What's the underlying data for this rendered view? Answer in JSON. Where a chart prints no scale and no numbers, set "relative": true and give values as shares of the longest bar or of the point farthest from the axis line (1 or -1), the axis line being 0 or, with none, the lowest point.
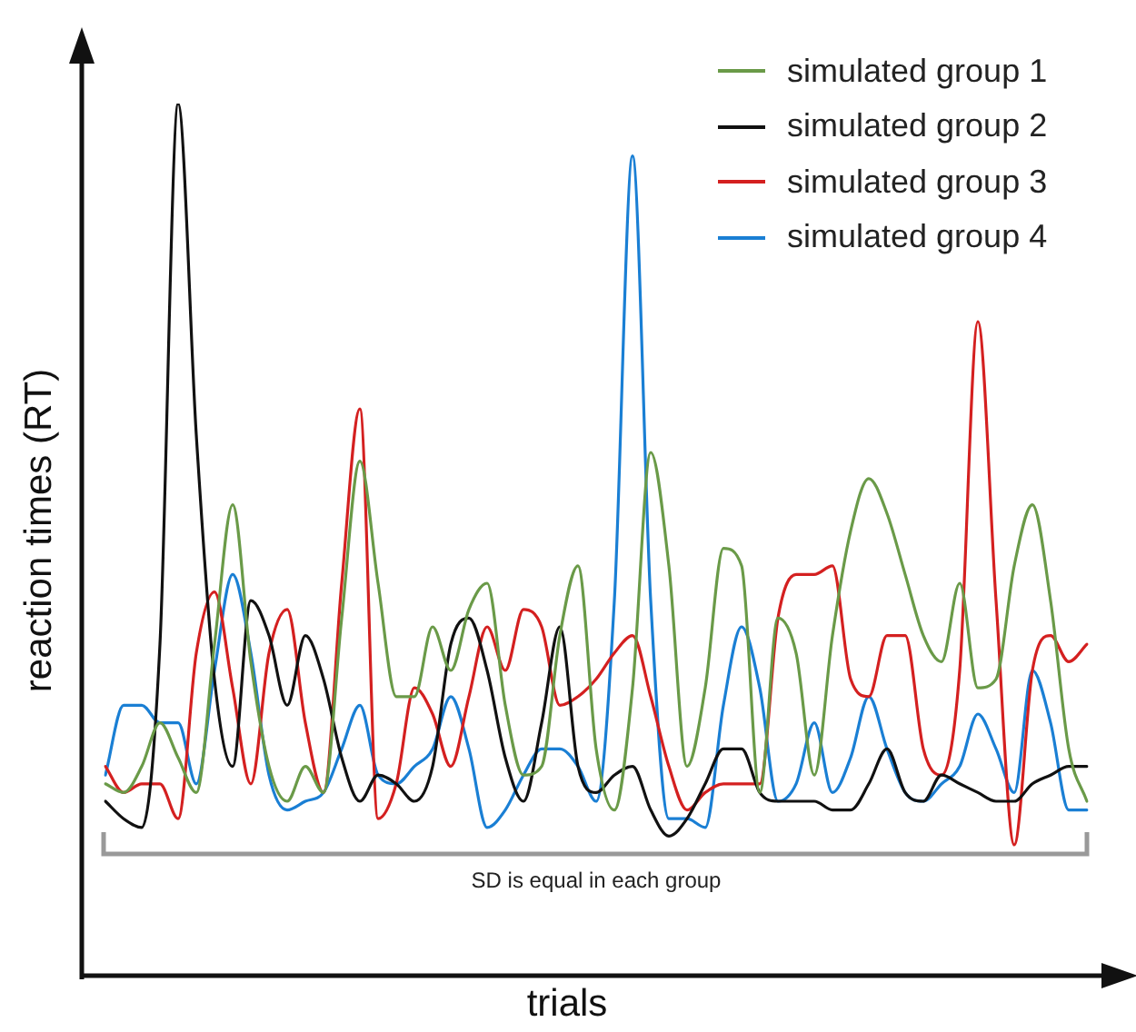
{
  "chart_data": {
    "type": "line",
    "relative": true,
    "xlabel": "trials",
    "ylabel": "reaction times (RT)",
    "legend": "top right",
    "annotations": [
      "SD is equal in each group"
    ],
    "categories": [
      null,
      null,
      null,
      null,
      null,
      null,
      null,
      null,
      null,
      null,
      null,
      null,
      null,
      null,
      null,
      null,
      null,
      null,
      null,
      null,
      null,
      null,
      null,
      null,
      null,
      null,
      null,
      null,
      null,
      null,
      null,
      null,
      null,
      null,
      null,
      null,
      null,
      null,
      null,
      null,
      null,
      null,
      null,
      null,
      null,
      null,
      null,
      null,
      null,
      null,
      null,
      null,
      null,
      null,
      null
    ],
    "series": [
      {
        "name": "simulated group 1",
        "color": "#6a9a48",
        "values": [
          0.22,
          0.21,
          0.24,
          0.29,
          0.25,
          0.21,
          0.38,
          0.54,
          0.36,
          0.24,
          0.2,
          0.24,
          0.21,
          0.41,
          0.59,
          0.45,
          0.32,
          0.32,
          0.4,
          0.35,
          0.42,
          0.45,
          0.31,
          0.23,
          0.24,
          0.39,
          0.47,
          0.26,
          0.19,
          0.33,
          0.6,
          0.47,
          0.24,
          0.33,
          0.49,
          0.47,
          0.21,
          0.41,
          0.37,
          0.23,
          0.39,
          0.51,
          0.57,
          0.53,
          0.46,
          0.39,
          0.36,
          0.45,
          0.33,
          0.34,
          0.47,
          0.54,
          0.43,
          0.26,
          0.2
        ]
      },
      {
        "name": "simulated group 2",
        "color": "#111111",
        "values": [
          0.2,
          0.18,
          0.17,
          0.38,
          1,
          0.62,
          0.34,
          0.24,
          0.43,
          0.39,
          0.31,
          0.39,
          0.34,
          0.25,
          0.2,
          0.23,
          0.22,
          0.2,
          0.24,
          0.38,
          0.41,
          0.35,
          0.25,
          0.2,
          0.29,
          0.4,
          0.24,
          0.21,
          0.23,
          0.24,
          0.19,
          0.16,
          0.18,
          0.22,
          0.26,
          0.26,
          0.21,
          0.2,
          0.2,
          0.2,
          0.19,
          0.19,
          0.22,
          0.26,
          0.21,
          0.2,
          0.23,
          0.22,
          0.21,
          0.2,
          0.2,
          0.22,
          0.23,
          0.24,
          0.24
        ]
      },
      {
        "name": "simulated group 3",
        "color": "#d42020",
        "values": [
          0.24,
          0.21,
          0.22,
          0.22,
          0.18,
          0.37,
          0.44,
          0.33,
          0.22,
          0.37,
          0.42,
          0.29,
          0.21,
          0.45,
          0.65,
          0.18,
          0.22,
          0.33,
          0.3,
          0.24,
          0.32,
          0.4,
          0.35,
          0.42,
          0.4,
          0.31,
          0.32,
          0.34,
          0.37,
          0.39,
          0.32,
          0.24,
          0.19,
          0.21,
          0.22,
          0.22,
          0.22,
          0.41,
          0.46,
          0.46,
          0.47,
          0.34,
          0.32,
          0.39,
          0.39,
          0.26,
          0.23,
          0.35,
          0.75,
          0.43,
          0.15,
          0.35,
          0.39,
          0.36,
          0.38
        ]
      },
      {
        "name": "simulated group 4",
        "color": "#1a7fd4",
        "values": [
          0.23,
          0.31,
          0.31,
          0.29,
          0.29,
          0.22,
          0.35,
          0.46,
          0.37,
          0.23,
          0.19,
          0.2,
          0.21,
          0.26,
          0.31,
          0.23,
          0.22,
          0.24,
          0.26,
          0.32,
          0.26,
          0.17,
          0.19,
          0.23,
          0.26,
          0.26,
          0.24,
          0.2,
          0.43,
          0.94,
          0.43,
          0.18,
          0.18,
          0.17,
          0.31,
          0.4,
          0.33,
          0.2,
          0.22,
          0.29,
          0.21,
          0.25,
          0.32,
          0.26,
          0.21,
          0.2,
          0.22,
          0.24,
          0.3,
          0.26,
          0.21,
          0.35,
          0.29,
          0.19,
          0.19
        ]
      }
    ]
  }
}
